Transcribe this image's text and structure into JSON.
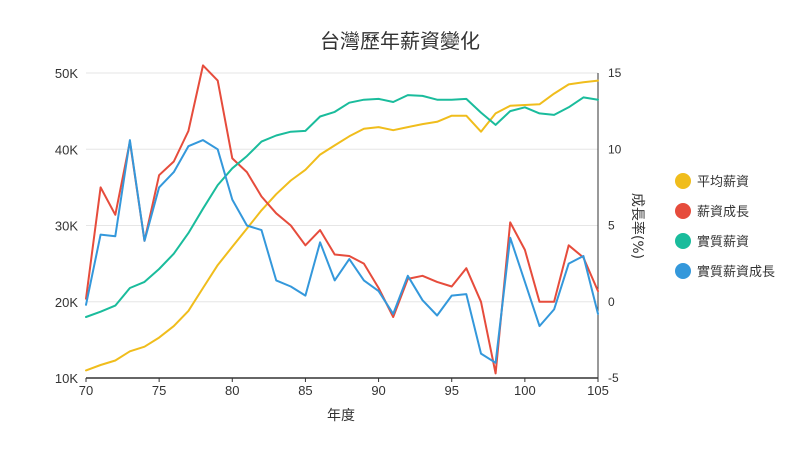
{
  "chart_data": {
    "type": "line",
    "title": "台灣歷年薪資變化",
    "xlabel": "年度",
    "ylabel": "",
    "y2label": "成長率(%)",
    "xlim": [
      70,
      105
    ],
    "ylim": [
      10000,
      50000
    ],
    "y2lim": [
      -5,
      15
    ],
    "x_ticks": [
      "70",
      "75",
      "80",
      "85",
      "90",
      "95",
      "100",
      "105"
    ],
    "y_ticks": [
      "10K",
      "20K",
      "30K",
      "40K",
      "50K"
    ],
    "y2_ticks": [
      "-5",
      "0",
      "5",
      "10",
      "15"
    ],
    "x": [
      70,
      71,
      72,
      73,
      74,
      75,
      76,
      77,
      78,
      79,
      80,
      81,
      82,
      83,
      84,
      85,
      86,
      87,
      88,
      89,
      90,
      91,
      92,
      93,
      94,
      95,
      96,
      97,
      98,
      99,
      100,
      101,
      102,
      103,
      104,
      105
    ],
    "series": [
      {
        "name": "平均薪資",
        "axis": "left",
        "color": "#f0bd1c",
        "values": [
          11000,
          11700,
          12300,
          13500,
          14100,
          15300,
          16800,
          18800,
          21800,
          24800,
          27200,
          29600,
          32000,
          34100,
          35900,
          37300,
          39300,
          40500,
          41700,
          42700,
          42900,
          42500,
          42900,
          43300,
          43600,
          44400,
          44400,
          42300,
          44700,
          45700,
          45800,
          45900,
          47300,
          48500,
          48800,
          49000
        ]
      },
      {
        "name": "薪資成長",
        "axis": "right",
        "color": "#e64c3c",
        "values": [
          0.2,
          7.5,
          5.7,
          10.5,
          4.0,
          8.3,
          9.2,
          11.2,
          15.5,
          14.5,
          9.4,
          8.5,
          6.9,
          5.8,
          5.0,
          3.7,
          4.7,
          3.1,
          3.0,
          2.5,
          0.9,
          -1.0,
          1.5,
          1.7,
          1.3,
          1.0,
          2.2,
          0.0,
          -4.7,
          5.2,
          3.4,
          0.0,
          0.0,
          3.7,
          2.9,
          0.7
        ]
      },
      {
        "name": "實質薪資",
        "axis": "left",
        "color": "#1abc9c",
        "values": [
          18000,
          18700,
          19500,
          21800,
          22600,
          24300,
          26300,
          29000,
          32200,
          35300,
          37500,
          39100,
          41000,
          41800,
          42300,
          42400,
          44300,
          44900,
          46100,
          46500,
          46600,
          46200,
          47100,
          47000,
          46500,
          46500,
          46600,
          44800,
          43200,
          45000,
          45500,
          44700,
          44500,
          45500,
          46800,
          46500
        ]
      },
      {
        "name": "實質薪資成長",
        "axis": "right",
        "color": "#3498db",
        "values": [
          -0.2,
          4.4,
          4.3,
          10.6,
          4.0,
          7.5,
          8.5,
          10.2,
          10.6,
          10.0,
          6.7,
          5.0,
          4.7,
          1.4,
          1.0,
          0.4,
          3.9,
          1.4,
          2.8,
          1.4,
          0.7,
          -0.8,
          1.7,
          0.1,
          -0.9,
          0.4,
          0.5,
          -3.4,
          -4.0,
          4.2,
          1.3,
          -1.6,
          -0.5,
          2.5,
          3.0,
          -0.8
        ]
      }
    ],
    "legend": {
      "position": "right",
      "entries": [
        "平均薪資",
        "薪資成長",
        "實質薪資",
        "實質薪資成長"
      ]
    },
    "grid": true
  }
}
